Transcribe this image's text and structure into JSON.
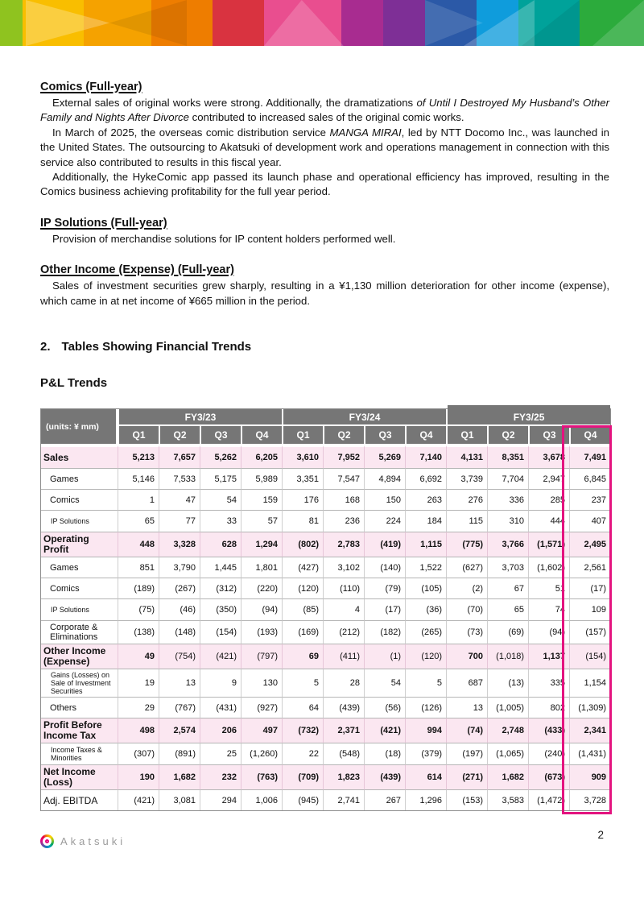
{
  "page": {
    "number": "2"
  },
  "colors": {
    "accent_pink": "#e4137f",
    "table_header_gray": "#767676",
    "summary_row_pink": "#fbe7f1",
    "banner_palette": [
      "#8fc31f",
      "#f9be00",
      "#f5a200",
      "#ee7d00",
      "#d93340",
      "#e94e8f",
      "#a82c90",
      "#7e2f96",
      "#2b59a7",
      "#0f9cdc",
      "#00a29a",
      "#2cab3c"
    ]
  },
  "sections": [
    {
      "heading": "Comics (Full-year)",
      "paragraphs": [
        {
          "runs": [
            {
              "text": "External sales of original works were strong. Additionally, the dramatizations "
            },
            {
              "text": "of Until I Destroyed My Husband’s Other Family and Nights After Divorce",
              "italic": true
            },
            {
              "text": " contributed to increased sales of the original comic works."
            }
          ]
        },
        {
          "runs": [
            {
              "text": "In March of 2025, the overseas comic distribution service "
            },
            {
              "text": "MANGA MIRAI",
              "italic": true
            },
            {
              "text": ", led by NTT Docomo Inc., was launched in the United States. The outsourcing to Akatsuki of development work and operations management in connection with this service also contributed to results in this fiscal year."
            }
          ]
        },
        {
          "runs": [
            {
              "text": "Additionally, the HykeComic app passed its launch phase and operational efficiency has improved, resulting in the Comics business achieving profitability for the full year period."
            }
          ]
        }
      ]
    },
    {
      "heading": "IP Solutions (Full-year)",
      "paragraphs": [
        {
          "runs": [
            {
              "text": "Provision of merchandise solutions for IP content holders performed well."
            }
          ]
        }
      ]
    },
    {
      "heading": "Other Income (Expense) (Full-year)",
      "paragraphs": [
        {
          "runs": [
            {
              "text": "Sales of investment securities grew sharply, resulting in a ¥1,130 million deterioration for other income (expense), which came in at net income of ¥665 million in the period."
            }
          ]
        }
      ]
    }
  ],
  "section_heading": {
    "number": "2.",
    "title": "Tables Showing Financial Trends"
  },
  "table_title": "P&L Trends",
  "table": {
    "units_label": "(units: ¥ mm)",
    "year_groups": [
      "FY3/23",
      "FY3/24",
      "FY3/25"
    ],
    "quarters": [
      "Q1",
      "Q2",
      "Q3",
      "Q4"
    ],
    "highlighted_column": "FY3/25 Q4",
    "rows": [
      {
        "label": "Sales",
        "style": "summary",
        "values": [
          "5,213",
          "7,657",
          "5,262",
          "6,205",
          "3,610",
          "7,952",
          "5,269",
          "7,140",
          "4,131",
          "8,351",
          "3,678",
          "7,491"
        ]
      },
      {
        "label": "Games",
        "style": "sub",
        "values": [
          "5,146",
          "7,533",
          "5,175",
          "5,989",
          "3,351",
          "7,547",
          "4,894",
          "6,692",
          "3,739",
          "7,704",
          "2,947",
          "6,845"
        ]
      },
      {
        "label": "Comics",
        "style": "sub",
        "values": [
          "1",
          "47",
          "54",
          "159",
          "176",
          "168",
          "150",
          "263",
          "276",
          "336",
          "285",
          "237"
        ]
      },
      {
        "label": "IP Solutions",
        "style": "subsmall",
        "values": [
          "65",
          "77",
          "33",
          "57",
          "81",
          "236",
          "224",
          "184",
          "115",
          "310",
          "444",
          "407"
        ]
      },
      {
        "label": "Operating Profit",
        "style": "summary",
        "values": [
          "448",
          "3,328",
          "628",
          "1,294",
          "(802)",
          "2,783",
          "(419)",
          "1,115",
          "(775)",
          "3,766",
          "(1,571)",
          "2,495"
        ]
      },
      {
        "label": "Games",
        "style": "sub",
        "values": [
          "851",
          "3,790",
          "1,445",
          "1,801",
          "(427)",
          "3,102",
          "(140)",
          "1,522",
          "(627)",
          "3,703",
          "(1,602)",
          "2,561"
        ]
      },
      {
        "label": "Comics",
        "style": "sub",
        "values": [
          "(189)",
          "(267)",
          "(312)",
          "(220)",
          "(120)",
          "(110)",
          "(79)",
          "(105)",
          "(2)",
          "67",
          "51",
          "(17)"
        ]
      },
      {
        "label": "IP Solutions",
        "style": "subsmall",
        "values": [
          "(75)",
          "(46)",
          "(350)",
          "(94)",
          "(85)",
          "4",
          "(17)",
          "(36)",
          "(70)",
          "65",
          "74",
          "109"
        ]
      },
      {
        "label": "Corporate & Eliminations",
        "style": "sub",
        "values": [
          "(138)",
          "(148)",
          "(154)",
          "(193)",
          "(169)",
          "(212)",
          "(182)",
          "(265)",
          "(73)",
          "(69)",
          "(94)",
          "(157)"
        ]
      },
      {
        "label": "Other Income (Expense)",
        "style": "summary",
        "negatives_bold": false,
        "values": [
          "49",
          "(754)",
          "(421)",
          "(797)",
          "69",
          "(411)",
          "(1)",
          "(120)",
          "700",
          "(1,018)",
          "1,137",
          "(154)"
        ]
      },
      {
        "label": "Gains (Losses) on Sale of Investment Securities",
        "style": "subsmall",
        "values": [
          "19",
          "13",
          "9",
          "130",
          "5",
          "28",
          "54",
          "5",
          "687",
          "(13)",
          "335",
          "1,154"
        ]
      },
      {
        "label": "Others",
        "style": "sub",
        "values": [
          "29",
          "(767)",
          "(431)",
          "(927)",
          "64",
          "(439)",
          "(56)",
          "(126)",
          "13",
          "(1,005)",
          "802",
          "(1,309)"
        ]
      },
      {
        "label": "Profit Before Income Tax",
        "style": "summary",
        "values": [
          "498",
          "2,574",
          "206",
          "497",
          "(732)",
          "2,371",
          "(421)",
          "994",
          "(74)",
          "2,748",
          "(433)",
          "2,341"
        ]
      },
      {
        "label": "Income Taxes & Minorities",
        "style": "subsmall",
        "values": [
          "(307)",
          "(891)",
          "25",
          "(1,260)",
          "22",
          "(548)",
          "(18)",
          "(379)",
          "(197)",
          "(1,065)",
          "(240)",
          "(1,431)"
        ]
      },
      {
        "label": "Net Income (Loss)",
        "style": "summary",
        "values": [
          "190",
          "1,682",
          "232",
          "(763)",
          "(709)",
          "1,823",
          "(439)",
          "614",
          "(271)",
          "1,682",
          "(673)",
          "909"
        ]
      },
      {
        "label": "Adj. EBITDA",
        "style": "plain",
        "values": [
          "(421)",
          "3,081",
          "294",
          "1,006",
          "(945)",
          "2,741",
          "267",
          "1,296",
          "(153)",
          "3,583",
          "(1,472)",
          "3,728"
        ]
      }
    ]
  },
  "footer": {
    "logo_text": "Akatsuki"
  }
}
